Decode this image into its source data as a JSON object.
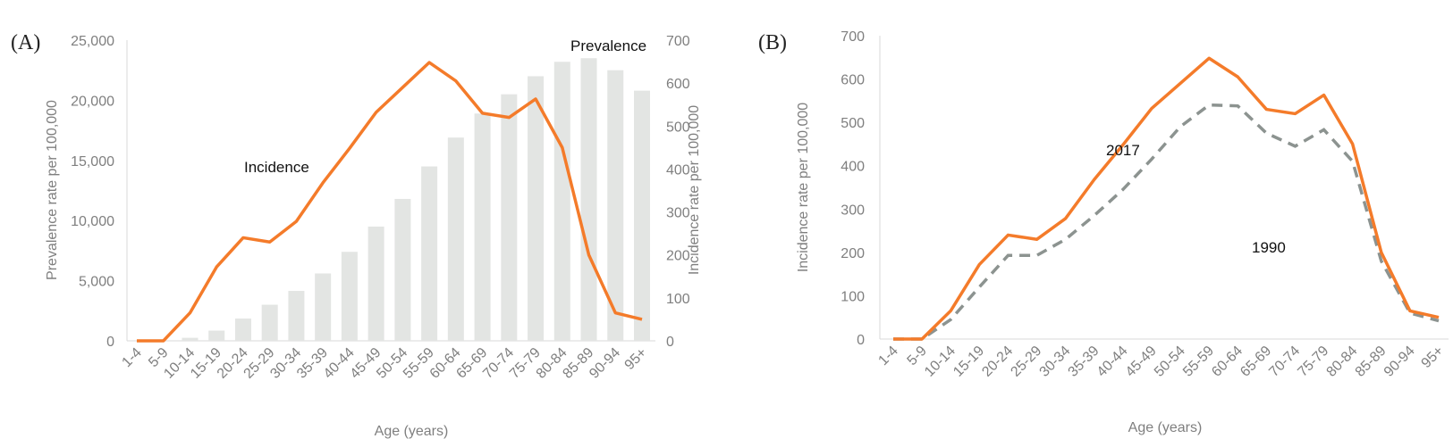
{
  "chart_data": [
    {
      "panel_label": "(A)",
      "type": "bar+line",
      "categories": [
        "1-4",
        "5-9",
        "10-14",
        "15-19",
        "20-24",
        "25-29",
        "30-34",
        "35-39",
        "40-44",
        "45-49",
        "50-54",
        "55-59",
        "60-64",
        "65-69",
        "70-74",
        "75-79",
        "80-84",
        "85-89",
        "90-94",
        "95+"
      ],
      "xlabel": "Age (years)",
      "ylabel_left": "Prevalence rate per 100,000",
      "ylabel_right": "Incidence rate per 100,000",
      "ylim_left": [
        0,
        25000
      ],
      "ylim_right": [
        0,
        700
      ],
      "yticks_left": [
        "0",
        "5,000",
        "10,000",
        "15,000",
        "20,000",
        "25,000"
      ],
      "yticks_right": [
        "0",
        "100",
        "200",
        "300",
        "400",
        "500",
        "600",
        "700"
      ],
      "grid": false,
      "series": [
        {
          "name": "Prevalence",
          "type": "bar",
          "axis": "left",
          "color": "#e3e5e3",
          "values": [
            0,
            0,
            250,
            850,
            1850,
            3000,
            4150,
            5600,
            7400,
            9500,
            11800,
            14500,
            16900,
            18900,
            20500,
            22000,
            23200,
            23500,
            22500,
            20800
          ]
        },
        {
          "name": "Incidence",
          "type": "line",
          "axis": "right",
          "color": "#f47b2a",
          "values": [
            0,
            0,
            65,
            172,
            240,
            230,
            278,
            368,
            448,
            532,
            590,
            648,
            605,
            530,
            520,
            563,
            450,
            200,
            65,
            50
          ]
        }
      ]
    },
    {
      "panel_label": "(B)",
      "type": "line",
      "categories": [
        "1-4",
        "5-9",
        "10-14",
        "15-19",
        "20-24",
        "25-29",
        "30-34",
        "35-39",
        "40-44",
        "45-49",
        "50-54",
        "55-59",
        "60-64",
        "65-69",
        "70-74",
        "75-79",
        "80-84",
        "85-89",
        "90-94",
        "95+"
      ],
      "xlabel": "Age (years)",
      "ylabel": "Incidence rate per 100,000",
      "ylim": [
        0,
        700
      ],
      "yticks": [
        "0",
        "100",
        "200",
        "300",
        "400",
        "500",
        "600",
        "700"
      ],
      "grid": false,
      "series": [
        {
          "name": "2017",
          "style": "solid",
          "color": "#f47b2a",
          "values": [
            0,
            0,
            65,
            172,
            240,
            230,
            278,
            368,
            448,
            532,
            590,
            648,
            605,
            530,
            520,
            563,
            450,
            200,
            65,
            50
          ]
        },
        {
          "name": "1990",
          "style": "dashed",
          "color": "#8c9390",
          "values": [
            0,
            0,
            45,
            120,
            193,
            193,
            230,
            285,
            345,
            415,
            490,
            540,
            538,
            475,
            445,
            483,
            410,
            180,
            60,
            42
          ]
        }
      ]
    }
  ]
}
